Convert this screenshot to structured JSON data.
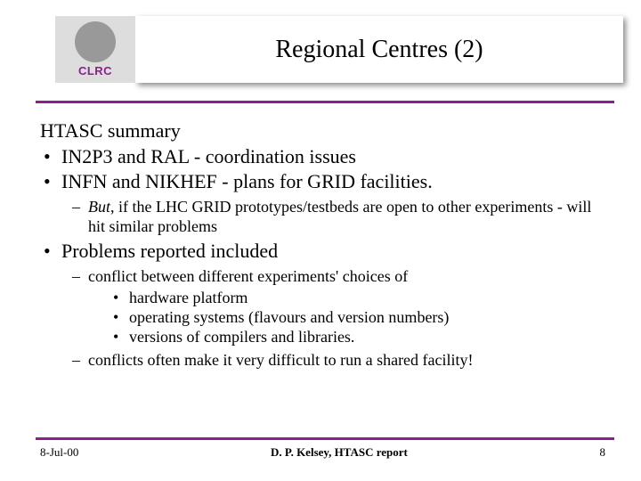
{
  "logo": {
    "label": "CLRC"
  },
  "title": "Regional Centres (2)",
  "accent_color": "#8e1e8e",
  "summary_heading": "HTASC summary",
  "bullets": {
    "b1": "IN2P3 and RAL - coordination issues",
    "b2": "INFN and NIKHEF - plans for GRID facilities.",
    "b2_sub_prefix": "But",
    "b2_sub_rest": ", if the LHC GRID prototypes/testbeds are open to other experiments - will hit similar problems",
    "b3": "Problems reported included",
    "b3_sub1": "conflict between different experiments' choices of",
    "b3_sub1_items": {
      "i1": "hardware platform",
      "i2": "operating systems (flavours and version numbers)",
      "i3": "versions of compilers and libraries."
    },
    "b3_sub2": "conflicts often make it very difficult to run a shared facility!"
  },
  "footer": {
    "date": "8-Jul-00",
    "center": "D. P. Kelsey, HTASC report",
    "page": "8"
  }
}
